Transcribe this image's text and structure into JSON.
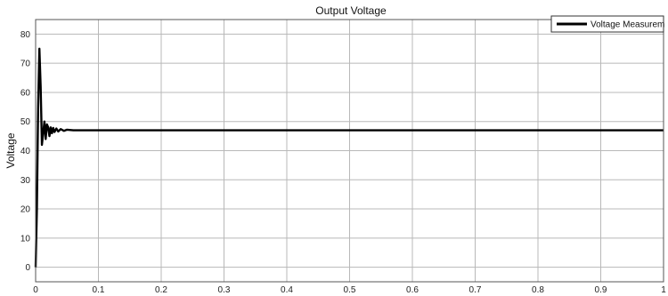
{
  "chart_data": {
    "type": "line",
    "title": "Output Voltage",
    "xlabel": "",
    "ylabel": "Voltage",
    "xlim": [
      0,
      1
    ],
    "ylim": [
      -5,
      85
    ],
    "x_ticks": [
      0,
      0.1,
      0.2,
      0.3,
      0.4,
      0.5,
      0.6,
      0.7,
      0.8,
      0.9,
      1
    ],
    "x_tick_labels": [
      "0",
      "0.1",
      "0.2",
      "0.3",
      "0.4",
      "0.5",
      "0.6",
      "0.7",
      "0.8",
      "0.9",
      "1"
    ],
    "y_ticks": [
      0,
      10,
      20,
      30,
      40,
      50,
      60,
      70,
      80
    ],
    "y_tick_labels": [
      "0",
      "10",
      "20",
      "30",
      "40",
      "50",
      "60",
      "70",
      "80"
    ],
    "grid": true,
    "legend_position": "top-right",
    "series": [
      {
        "name": "Voltage Measurem",
        "color": "#000000",
        "x": [
          0,
          0.002,
          0.004,
          0.006,
          0.008,
          0.01,
          0.012,
          0.014,
          0.016,
          0.018,
          0.02,
          0.022,
          0.024,
          0.026,
          0.028,
          0.03,
          0.033,
          0.036,
          0.04,
          0.045,
          0.05,
          0.06,
          0.08,
          0.1,
          0.2,
          0.3,
          0.4,
          0.5,
          0.6,
          0.7,
          0.8,
          0.9,
          1.0
        ],
        "y": [
          0,
          20,
          55,
          75,
          62,
          42,
          46,
          50,
          44,
          49,
          48,
          45,
          48,
          46,
          47.8,
          46.4,
          47.6,
          46.6,
          47.4,
          46.8,
          47.2,
          47,
          47,
          47,
          47,
          47,
          47,
          47,
          47,
          47,
          47,
          47,
          47
        ]
      }
    ]
  }
}
